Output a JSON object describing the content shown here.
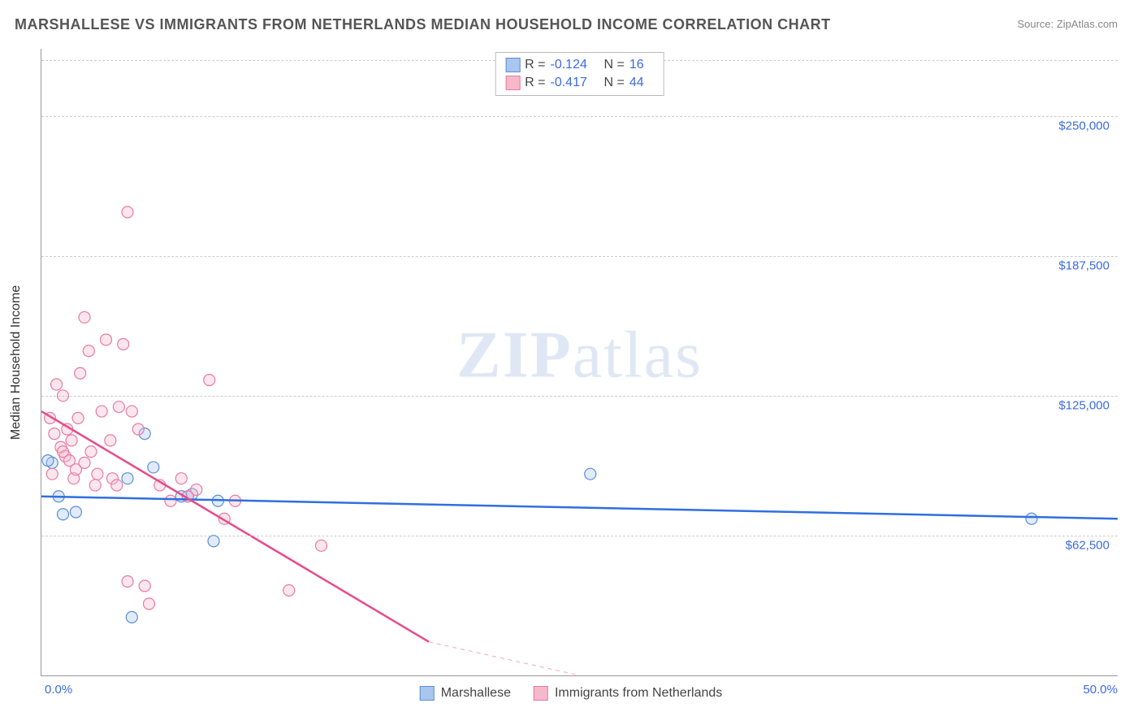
{
  "title": "MARSHALLESE VS IMMIGRANTS FROM NETHERLANDS MEDIAN HOUSEHOLD INCOME CORRELATION CHART",
  "source": "Source: ZipAtlas.com",
  "watermark_a": "ZIP",
  "watermark_b": "atlas",
  "chart": {
    "type": "scatter",
    "background_color": "#ffffff",
    "grid_color": "#cccccc",
    "axis_color": "#999999",
    "value_color": "#3b6ae1",
    "text_color": "#555555",
    "xlim": [
      0,
      50
    ],
    "ylim": [
      0,
      280000
    ],
    "x_min_label": "0.0%",
    "x_max_label": "50.0%",
    "y_ticks": [
      {
        "v": 62500,
        "label": "$62,500"
      },
      {
        "v": 125000,
        "label": "$125,000"
      },
      {
        "v": 187500,
        "label": "$187,500"
      },
      {
        "v": 250000,
        "label": "$250,000"
      }
    ],
    "y_axis_label": "Median Household Income",
    "title_fontsize": 18,
    "label_fontsize": 16,
    "tick_fontsize": 15,
    "marker_radius": 7,
    "marker_opacity": 0.35,
    "line_width": 2.5,
    "series": [
      {
        "name": "Marshallese",
        "color_fill": "#a9c6ef",
        "color_stroke": "#5b8edb",
        "line_color": "#2f6fe0",
        "R": "-0.124",
        "N": "16",
        "regression": {
          "x1": 0,
          "y1": 80000,
          "x2": 50,
          "y2": 70000
        },
        "points": [
          {
            "x": 0.5,
            "y": 95000
          },
          {
            "x": 0.8,
            "y": 80000
          },
          {
            "x": 1.6,
            "y": 73000
          },
          {
            "x": 1.0,
            "y": 72000
          },
          {
            "x": 4.0,
            "y": 88000
          },
          {
            "x": 4.8,
            "y": 108000
          },
          {
            "x": 5.2,
            "y": 93000
          },
          {
            "x": 6.5,
            "y": 80000
          },
          {
            "x": 6.8,
            "y": 80000
          },
          {
            "x": 8.2,
            "y": 78000
          },
          {
            "x": 8.0,
            "y": 60000
          },
          {
            "x": 4.2,
            "y": 26000
          },
          {
            "x": 25.5,
            "y": 90000
          },
          {
            "x": 46.0,
            "y": 70000
          },
          {
            "x": 7.0,
            "y": 81000
          },
          {
            "x": 0.3,
            "y": 96000
          }
        ]
      },
      {
        "name": "Immigrants from Netherlands",
        "color_fill": "#f6b8ca",
        "color_stroke": "#e87ba0",
        "line_color": "#e84b8a",
        "R": "-0.417",
        "N": "44",
        "regression": {
          "x1": 0,
          "y1": 118000,
          "x2": 18,
          "y2": 15000
        },
        "regression_ext": {
          "x1": 18,
          "y1": 15000,
          "x2": 25,
          "y2": -25000
        },
        "points": [
          {
            "x": 0.4,
            "y": 115000
          },
          {
            "x": 0.6,
            "y": 108000
          },
          {
            "x": 0.7,
            "y": 130000
          },
          {
            "x": 0.9,
            "y": 102000
          },
          {
            "x": 1.1,
            "y": 98000
          },
          {
            "x": 1.2,
            "y": 110000
          },
          {
            "x": 1.3,
            "y": 96000
          },
          {
            "x": 1.4,
            "y": 105000
          },
          {
            "x": 1.5,
            "y": 88000
          },
          {
            "x": 1.6,
            "y": 92000
          },
          {
            "x": 1.8,
            "y": 135000
          },
          {
            "x": 2.0,
            "y": 160000
          },
          {
            "x": 2.2,
            "y": 145000
          },
          {
            "x": 2.3,
            "y": 100000
          },
          {
            "x": 2.5,
            "y": 85000
          },
          {
            "x": 2.6,
            "y": 90000
          },
          {
            "x": 2.8,
            "y": 118000
          },
          {
            "x": 3.0,
            "y": 150000
          },
          {
            "x": 3.2,
            "y": 105000
          },
          {
            "x": 3.3,
            "y": 88000
          },
          {
            "x": 3.5,
            "y": 85000
          },
          {
            "x": 3.6,
            "y": 120000
          },
          {
            "x": 3.8,
            "y": 148000
          },
          {
            "x": 4.0,
            "y": 42000
          },
          {
            "x": 4.0,
            "y": 207000
          },
          {
            "x": 4.2,
            "y": 118000
          },
          {
            "x": 4.5,
            "y": 110000
          },
          {
            "x": 4.8,
            "y": 40000
          },
          {
            "x": 5.0,
            "y": 32000
          },
          {
            "x": 5.5,
            "y": 85000
          },
          {
            "x": 6.0,
            "y": 78000
          },
          {
            "x": 6.5,
            "y": 88000
          },
          {
            "x": 6.8,
            "y": 80000
          },
          {
            "x": 7.2,
            "y": 83000
          },
          {
            "x": 7.8,
            "y": 132000
          },
          {
            "x": 8.5,
            "y": 70000
          },
          {
            "x": 9.0,
            "y": 78000
          },
          {
            "x": 11.5,
            "y": 38000
          },
          {
            "x": 13.0,
            "y": 58000
          },
          {
            "x": 1.0,
            "y": 125000
          },
          {
            "x": 1.0,
            "y": 100000
          },
          {
            "x": 0.5,
            "y": 90000
          },
          {
            "x": 2.0,
            "y": 95000
          },
          {
            "x": 1.7,
            "y": 115000
          }
        ]
      }
    ],
    "legend_bottom": [
      {
        "label": "Marshallese",
        "fill": "#a9c6ef",
        "stroke": "#5b8edb"
      },
      {
        "label": "Immigrants from Netherlands",
        "fill": "#f6b8ca",
        "stroke": "#e87ba0"
      }
    ]
  }
}
